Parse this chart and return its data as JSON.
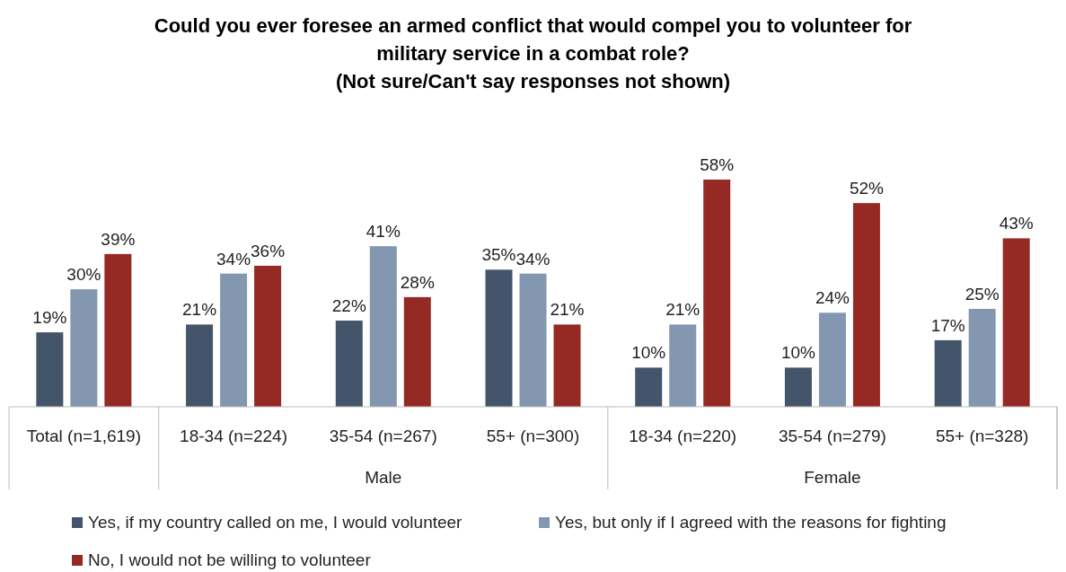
{
  "chart_data": {
    "type": "bar",
    "title": "Could you ever foresee an armed conflict that would compel you to volunteer for military service in a combat role?",
    "subtitle": "(Not sure/Can't say responses not shown)",
    "categories": [
      "Total (n=1,619)",
      "18-34 (n=224)",
      "35-54 (n=267)",
      "55+ (n=300)",
      "18-34 (n=220)",
      "35-54 (n=279)",
      "55+ (n=328)"
    ],
    "annotations": [
      "Male",
      "Female"
    ],
    "legend": "bottom",
    "series": [
      {
        "name": "Yes, if my country called on me, I would volunteer",
        "color": "#44546a",
        "values": [
          19,
          21,
          22,
          35,
          10,
          10,
          17
        ],
        "value_labels": [
          "19%",
          "21%",
          "22%",
          "35%",
          "10%",
          "10%",
          "17%"
        ]
      },
      {
        "name": "Yes, but only if I agreed with the reasons for fighting",
        "color": "#8497b0",
        "values": [
          30,
          34,
          41,
          34,
          21,
          24,
          25
        ],
        "value_labels": [
          "30%",
          "34%",
          "41%",
          "34%",
          "21%",
          "24%",
          "25%"
        ]
      },
      {
        "name": "No, I would not be willing to volunteer",
        "color": "#952a24",
        "values": [
          39,
          36,
          28,
          21,
          58,
          52,
          43
        ],
        "value_labels": [
          "39%",
          "36%",
          "28%",
          "21%",
          "58%",
          "52%",
          "43%"
        ]
      }
    ]
  }
}
